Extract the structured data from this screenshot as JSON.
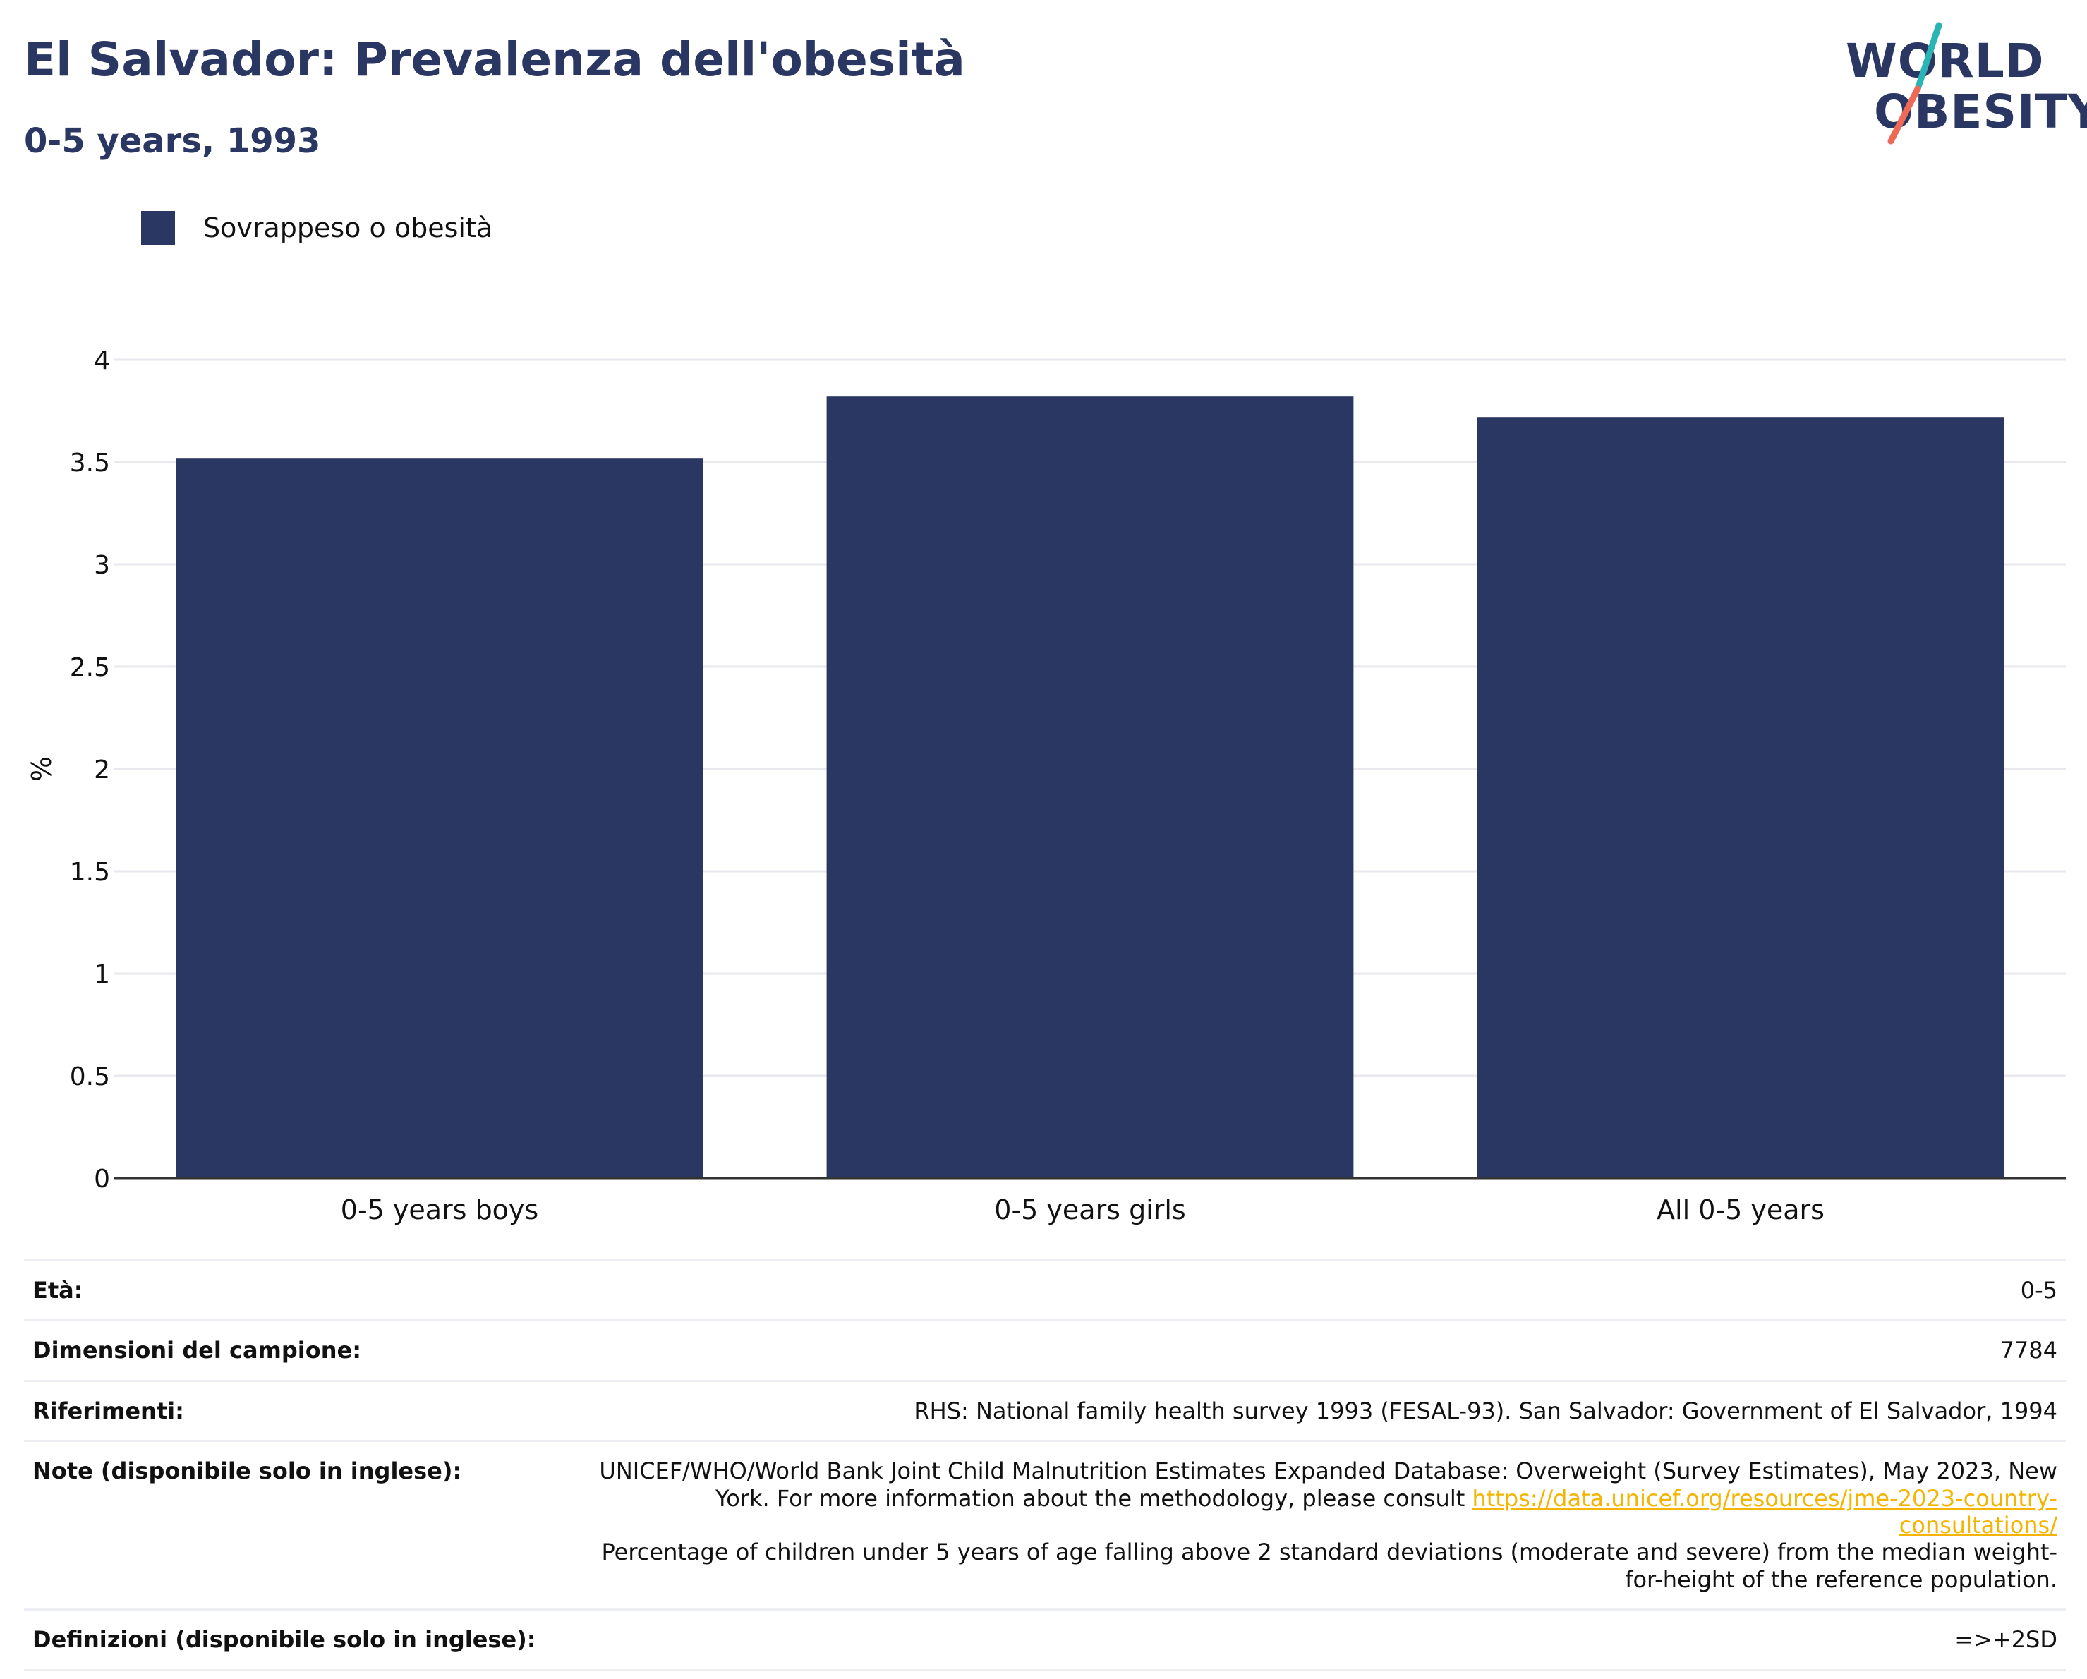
{
  "header": {
    "title": "El Salvador: Prevalenza dell'obesità",
    "subtitle": "0-5 years, 1993"
  },
  "logo": {
    "line1": "WORLD",
    "line2": "OBESITY",
    "colors": {
      "text": "#2a3762",
      "slash_top": "#2ab4b4",
      "slash_bottom": "#ef6a56"
    }
  },
  "legend": {
    "label": "Sovrappeso o obesità",
    "color": "#2a3762"
  },
  "chart_data": {
    "type": "bar",
    "categories": [
      "0-5 years boys",
      "0-5 years girls",
      "All 0-5 years"
    ],
    "series": [
      {
        "name": "Sovrappeso o obesità",
        "values": [
          3.52,
          3.82,
          3.72
        ],
        "color": "#2a3762"
      }
    ],
    "ylabel": "%",
    "ylim": [
      0,
      4
    ],
    "yticks": [
      0,
      0.5,
      1,
      1.5,
      2,
      2.5,
      3,
      3.5,
      4
    ],
    "ytick_labels": [
      "0",
      "0.5",
      "1",
      "1.5",
      "2",
      "2.5",
      "3",
      "3.5",
      "4"
    ],
    "grid": true,
    "legend_position": "top-left"
  },
  "meta": {
    "age": {
      "label": "Età:",
      "value": "0-5"
    },
    "sample": {
      "label": "Dimensioni del campione:",
      "value": "7784"
    },
    "references": {
      "label": "Riferimenti:",
      "value": "RHS: National family health survey 1993 (FESAL-93). San Salvador: Government of El Salvador, 1994"
    },
    "notes": {
      "label": "Note (disponibile solo in inglese):",
      "text_before": "UNICEF/WHO/World Bank Joint Child Malnutrition Estimates Expanded Database: Overweight (Survey Estimates), May 2023, New York. For more information about the methodology, please consult ",
      "link": "https://data.unicef.org/resources/jme-2023-country-consultations/",
      "text_after": "Percentage of children under 5 years of age falling above 2 standard deviations (moderate and severe) from the median weight-for-height of the reference population."
    },
    "definitions": {
      "label": "Definizioni (disponibile solo in inglese):",
      "value": "=>+2SD"
    }
  }
}
